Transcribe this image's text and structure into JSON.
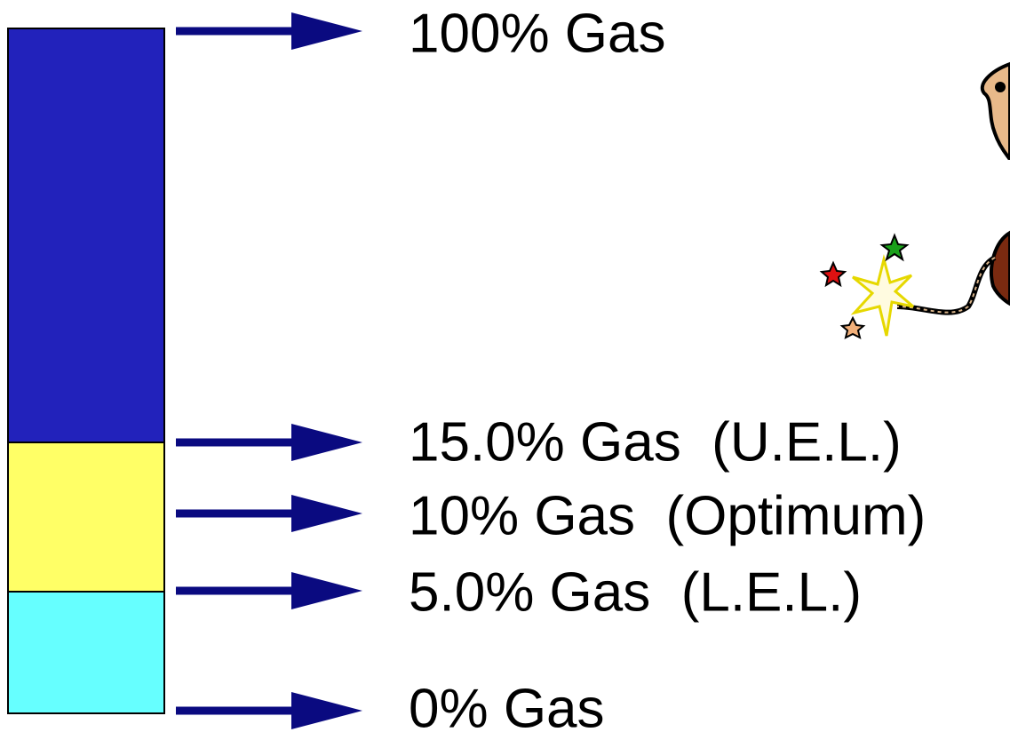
{
  "levels": [
    "100% Gas",
    "15.0% Gas  (U.E.L.)",
    "10% Gas  (Optimum)",
    "5.0% Gas  (L.E.L.)",
    "0% Gas"
  ]
}
